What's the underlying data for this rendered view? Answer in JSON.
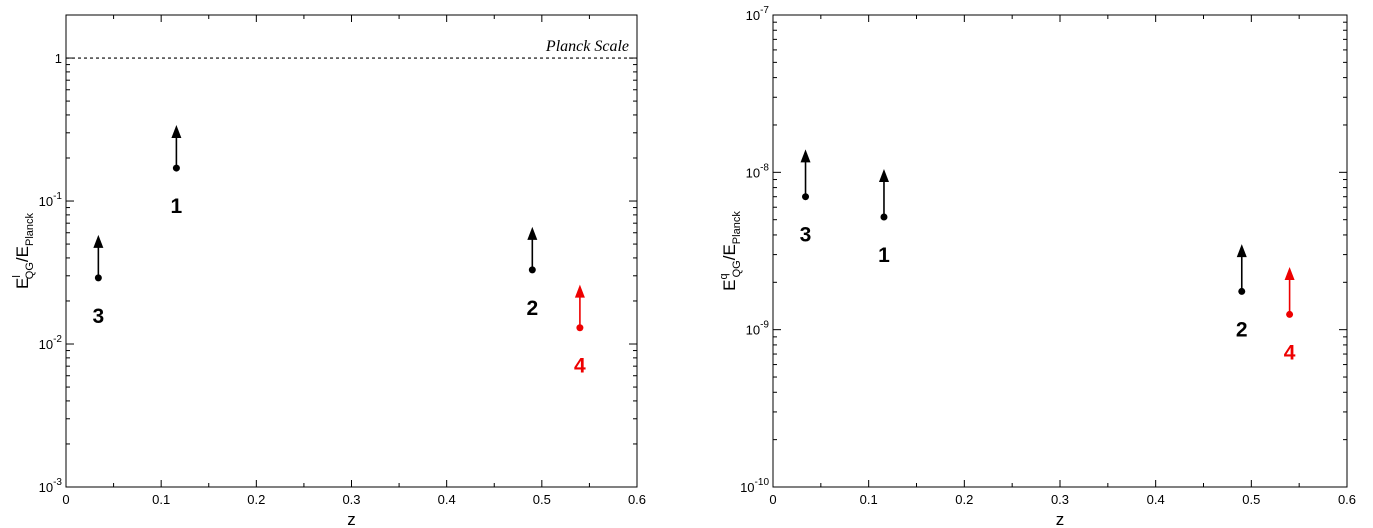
{
  "chart_data": [
    {
      "type": "scatter",
      "xlabel": "z",
      "ylabel": {
        "base": "E",
        "sup": "l",
        "sub": "QG",
        "denom_base": "E",
        "denom_sub": "Planck"
      },
      "xlim": [
        0,
        0.6
      ],
      "ylim": [
        0.001,
        2
      ],
      "yscale": "log",
      "x_ticks": [
        "0",
        "0.1",
        "0.2",
        "0.3",
        "0.4",
        "0.5",
        "0.6"
      ],
      "y_ticks": [
        {
          "value": 0.001,
          "mant": "10",
          "exp": "-3"
        },
        {
          "value": 0.01,
          "mant": "10",
          "exp": "-2"
        },
        {
          "value": 0.1,
          "mant": "10",
          "exp": "-1"
        },
        {
          "value": 1,
          "mant": "1",
          "exp": ""
        }
      ],
      "reference_line": {
        "y": 1,
        "label": "Planck Scale",
        "style": "dotted"
      },
      "points": [
        {
          "label": "3",
          "x": 0.034,
          "y": 0.029,
          "arrow_to": 0.058,
          "color": "#000000"
        },
        {
          "label": "1",
          "x": 0.116,
          "y": 0.17,
          "arrow_to": 0.34,
          "color": "#000000"
        },
        {
          "label": "2",
          "x": 0.49,
          "y": 0.033,
          "arrow_to": 0.066,
          "color": "#000000"
        },
        {
          "label": "4",
          "x": 0.54,
          "y": 0.013,
          "arrow_to": 0.026,
          "color": "#ee0000"
        }
      ]
    },
    {
      "type": "scatter",
      "xlabel": "z",
      "ylabel": {
        "base": "E",
        "sup": "q",
        "sub": "QG",
        "denom_base": "E",
        "denom_sub": "Planck"
      },
      "xlim": [
        0,
        0.6
      ],
      "ylim": [
        1e-10,
        1e-07
      ],
      "yscale": "log",
      "x_ticks": [
        "0",
        "0.1",
        "0.2",
        "0.3",
        "0.4",
        "0.5",
        "0.6"
      ],
      "y_ticks": [
        {
          "value": 1e-10,
          "mant": "10",
          "exp": "-10"
        },
        {
          "value": 1e-09,
          "mant": "10",
          "exp": "-9"
        },
        {
          "value": 1e-08,
          "mant": "10",
          "exp": "-8"
        },
        {
          "value": 1e-07,
          "mant": "10",
          "exp": "-7"
        }
      ],
      "points": [
        {
          "label": "3",
          "x": 0.034,
          "y": 7e-09,
          "arrow_to": 1.4e-08,
          "color": "#000000"
        },
        {
          "label": "1",
          "x": 0.116,
          "y": 5.2e-09,
          "arrow_to": 1.05e-08,
          "color": "#000000"
        },
        {
          "label": "2",
          "x": 0.49,
          "y": 1.75e-09,
          "arrow_to": 3.5e-09,
          "color": "#000000"
        },
        {
          "label": "4",
          "x": 0.54,
          "y": 1.25e-09,
          "arrow_to": 2.5e-09,
          "color": "#ee0000"
        }
      ]
    }
  ]
}
